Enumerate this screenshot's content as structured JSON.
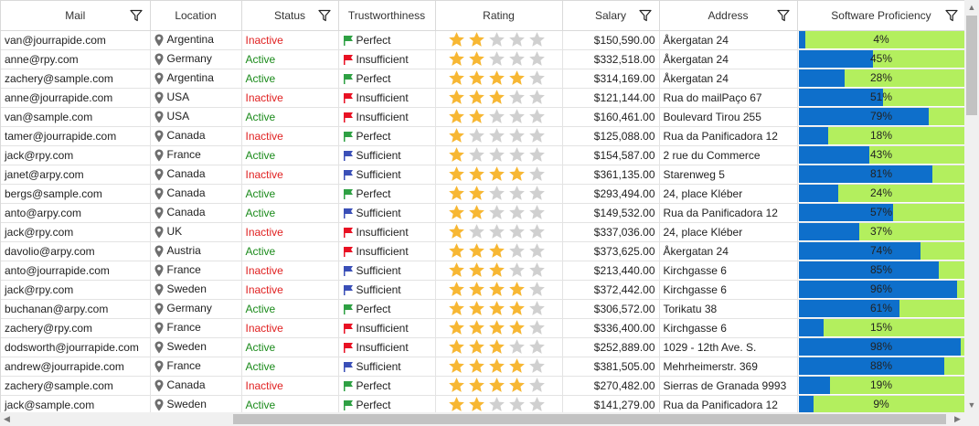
{
  "columns": [
    {
      "label": "Mail",
      "filter": true
    },
    {
      "label": "Location",
      "filter": false
    },
    {
      "label": "Status",
      "filter": true
    },
    {
      "label": "Trustworthiness",
      "filter": false
    },
    {
      "label": "Rating",
      "filter": false
    },
    {
      "label": "Salary",
      "filter": true
    },
    {
      "label": "Address",
      "filter": true
    },
    {
      "label": "Software Proficiency",
      "filter": true
    }
  ],
  "colors": {
    "active": "#1a8a1a",
    "inactive": "#e02020",
    "flag_perfect": "#2ea043",
    "flag_insufficient": "#e81123",
    "flag_sufficient": "#3a4fb7",
    "star_on": "#f7b733",
    "star_off": "#d0d0d0",
    "bar_fill": "#0e6fcb",
    "bar_bg": "#b3ef5e"
  },
  "rows": [
    {
      "mail": "van@jourrapide.com",
      "location": "Argentina",
      "status": "Inactive",
      "trust": "Perfect",
      "rating": 2,
      "salary": "$150,590.00",
      "address": "Åkergatan 24",
      "proficiency": 4,
      "proficiency_text": "4%"
    },
    {
      "mail": "anne@rpy.com",
      "location": "Germany",
      "status": "Active",
      "trust": "Insufficient",
      "rating": 2,
      "salary": "$332,518.00",
      "address": "Åkergatan 24",
      "proficiency": 45,
      "proficiency_text": "45%"
    },
    {
      "mail": "zachery@sample.com",
      "location": "Argentina",
      "status": "Active",
      "trust": "Perfect",
      "rating": 4,
      "salary": "$314,169.00",
      "address": "Åkergatan 24",
      "proficiency": 28,
      "proficiency_text": "28%"
    },
    {
      "mail": "anne@jourrapide.com",
      "location": "USA",
      "status": "Inactive",
      "trust": "Insufficient",
      "rating": 3,
      "salary": "$121,144.00",
      "address": "Rua do mailPaço 67",
      "proficiency": 51,
      "proficiency_text": "51%"
    },
    {
      "mail": "van@sample.com",
      "location": "USA",
      "status": "Active",
      "trust": "Insufficient",
      "rating": 2,
      "salary": "$160,461.00",
      "address": "Boulevard Tirou 255",
      "proficiency": 79,
      "proficiency_text": "79%"
    },
    {
      "mail": "tamer@jourrapide.com",
      "location": "Canada",
      "status": "Inactive",
      "trust": "Perfect",
      "rating": 1,
      "salary": "$125,088.00",
      "address": "Rua da Panificadora 12",
      "proficiency": 18,
      "proficiency_text": "18%"
    },
    {
      "mail": "jack@rpy.com",
      "location": "France",
      "status": "Active",
      "trust": "Sufficient",
      "rating": 1,
      "salary": "$154,587.00",
      "address": "2 rue du Commerce",
      "proficiency": 43,
      "proficiency_text": "43%"
    },
    {
      "mail": "janet@arpy.com",
      "location": "Canada",
      "status": "Inactive",
      "trust": "Sufficient",
      "rating": 4,
      "salary": "$361,135.00",
      "address": "Starenweg 5",
      "proficiency": 81,
      "proficiency_text": "81%"
    },
    {
      "mail": "bergs@sample.com",
      "location": "Canada",
      "status": "Active",
      "trust": "Perfect",
      "rating": 2,
      "salary": "$293,494.00",
      "address": "24, place Kléber",
      "proficiency": 24,
      "proficiency_text": "24%"
    },
    {
      "mail": "anto@arpy.com",
      "location": "Canada",
      "status": "Active",
      "trust": "Sufficient",
      "rating": 2,
      "salary": "$149,532.00",
      "address": "Rua da Panificadora 12",
      "proficiency": 57,
      "proficiency_text": "57%"
    },
    {
      "mail": "jack@rpy.com",
      "location": "UK",
      "status": "Inactive",
      "trust": "Insufficient",
      "rating": 1,
      "salary": "$337,036.00",
      "address": "24, place Kléber",
      "proficiency": 37,
      "proficiency_text": "37%"
    },
    {
      "mail": "davolio@arpy.com",
      "location": "Austria",
      "status": "Active",
      "trust": "Insufficient",
      "rating": 3,
      "salary": "$373,625.00",
      "address": "Åkergatan 24",
      "proficiency": 74,
      "proficiency_text": "74%"
    },
    {
      "mail": "anto@jourrapide.com",
      "location": "France",
      "status": "Inactive",
      "trust": "Sufficient",
      "rating": 3,
      "salary": "$213,440.00",
      "address": "Kirchgasse 6",
      "proficiency": 85,
      "proficiency_text": "85%"
    },
    {
      "mail": "jack@rpy.com",
      "location": "Sweden",
      "status": "Inactive",
      "trust": "Sufficient",
      "rating": 4,
      "salary": "$372,442.00",
      "address": "Kirchgasse 6",
      "proficiency": 96,
      "proficiency_text": "96%"
    },
    {
      "mail": "buchanan@arpy.com",
      "location": "Germany",
      "status": "Active",
      "trust": "Perfect",
      "rating": 4,
      "salary": "$306,572.00",
      "address": "Torikatu 38",
      "proficiency": 61,
      "proficiency_text": "61%"
    },
    {
      "mail": "zachery@rpy.com",
      "location": "France",
      "status": "Inactive",
      "trust": "Insufficient",
      "rating": 4,
      "salary": "$336,400.00",
      "address": "Kirchgasse 6",
      "proficiency": 15,
      "proficiency_text": "15%"
    },
    {
      "mail": "dodsworth@jourrapide.com",
      "location": "Sweden",
      "status": "Active",
      "trust": "Insufficient",
      "rating": 3,
      "salary": "$252,889.00",
      "address": "1029 - 12th Ave. S.",
      "proficiency": 98,
      "proficiency_text": "98%"
    },
    {
      "mail": "andrew@jourrapide.com",
      "location": "France",
      "status": "Active",
      "trust": "Sufficient",
      "rating": 4,
      "salary": "$381,505.00",
      "address": "Mehrheimerstr. 369",
      "proficiency": 88,
      "proficiency_text": "88%"
    },
    {
      "mail": "zachery@sample.com",
      "location": "Canada",
      "status": "Inactive",
      "trust": "Perfect",
      "rating": 4,
      "salary": "$270,482.00",
      "address": "Sierras de Granada 9993",
      "proficiency": 19,
      "proficiency_text": "19%"
    },
    {
      "mail": "jack@sample.com",
      "location": "Sweden",
      "status": "Active",
      "trust": "Perfect",
      "rating": 2,
      "salary": "$141,279.00",
      "address": "Rua da Panificadora 12",
      "proficiency": 9,
      "proficiency_text": "9%"
    }
  ]
}
